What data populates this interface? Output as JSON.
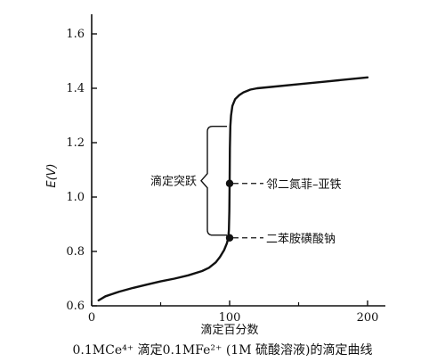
{
  "chart_data": {
    "type": "line",
    "xlabel": "滴定百分数",
    "ylabel": "E(V)",
    "xlim": [
      0,
      200
    ],
    "ylim": [
      0.6,
      1.7
    ],
    "x_ticks": [
      0,
      100,
      200
    ],
    "y_ticks": [
      0.6,
      0.8,
      1.0,
      1.2,
      1.4,
      1.6
    ],
    "x_tick_labels": [
      "0",
      "100",
      "200"
    ],
    "y_tick_labels": [
      "0.6",
      "0.8",
      "1.0",
      "1.2",
      "1.4",
      "1.6"
    ],
    "grid": false,
    "series": [
      {
        "x": [
          5,
          10,
          20,
          30,
          40,
          50,
          60,
          70,
          80,
          85,
          90,
          93,
          96,
          98,
          99,
          99.5,
          99.8,
          100,
          100.2,
          100.5,
          101,
          102,
          104,
          107,
          110,
          115,
          120,
          130,
          150,
          170,
          200
        ],
        "y": [
          0.62,
          0.635,
          0.652,
          0.666,
          0.678,
          0.69,
          0.7,
          0.712,
          0.728,
          0.74,
          0.76,
          0.78,
          0.805,
          0.83,
          0.85,
          0.88,
          0.95,
          1.05,
          1.18,
          1.26,
          1.3,
          1.335,
          1.36,
          1.375,
          1.385,
          1.395,
          1.4,
          1.405,
          1.415,
          1.425,
          1.44
        ]
      }
    ],
    "annotations": {
      "jump_label": "滴定突跃",
      "jump_range": [
        0.86,
        1.26
      ],
      "indicators": [
        {
          "label": "邻二氮菲–亚铁",
          "x": 100,
          "y": 1.05
        },
        {
          "label": "二苯胺磺酸钠",
          "x": 100,
          "y": 0.85
        }
      ]
    },
    "caption": "0.1MCe⁴⁺ 滴定0.1MFe²⁺ (1M 硫酸溶液)的滴定曲线"
  }
}
